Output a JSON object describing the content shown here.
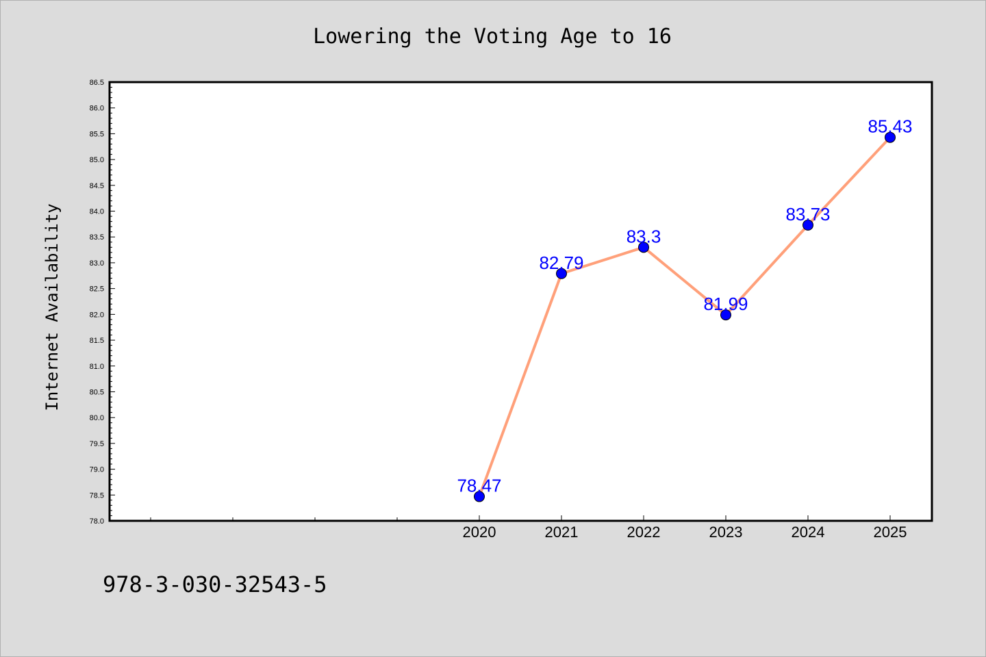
{
  "colors": {
    "background": "#dcdcdc",
    "plot_background": "#ffffff",
    "line": "#ffa07a",
    "marker": "#0000ff",
    "label": "#0000ff",
    "axis": "#000000"
  },
  "chart_data": {
    "type": "line",
    "title": "Lowering the Voting Age to 16",
    "xlabel": "",
    "ylabel": "Internet Availability",
    "x_ticks": [
      "2020",
      "2021",
      "2022",
      "2023",
      "2024",
      "2025"
    ],
    "x_minor_ticks": 4,
    "ylim": [
      78.0,
      86.5
    ],
    "y_ticks": [
      "78.0",
      "78.5",
      "79.0",
      "79.5",
      "80.0",
      "80.5",
      "81.0",
      "81.5",
      "82.0",
      "82.5",
      "83.0",
      "83.5",
      "84.0",
      "84.5",
      "85.0",
      "85.5",
      "86.0",
      "86.5"
    ],
    "grid": false,
    "series": [
      {
        "x": [
          "2020",
          "2021",
          "2022",
          "2023",
          "2024",
          "2025"
        ],
        "values": [
          78.47,
          82.79,
          83.3,
          81.99,
          83.73,
          85.43
        ],
        "data_labels": [
          "78.47",
          "82.79",
          "83.3",
          "81.99",
          "83.73",
          "85.43"
        ]
      }
    ]
  },
  "footer_text": "978-3-030-32543-5"
}
